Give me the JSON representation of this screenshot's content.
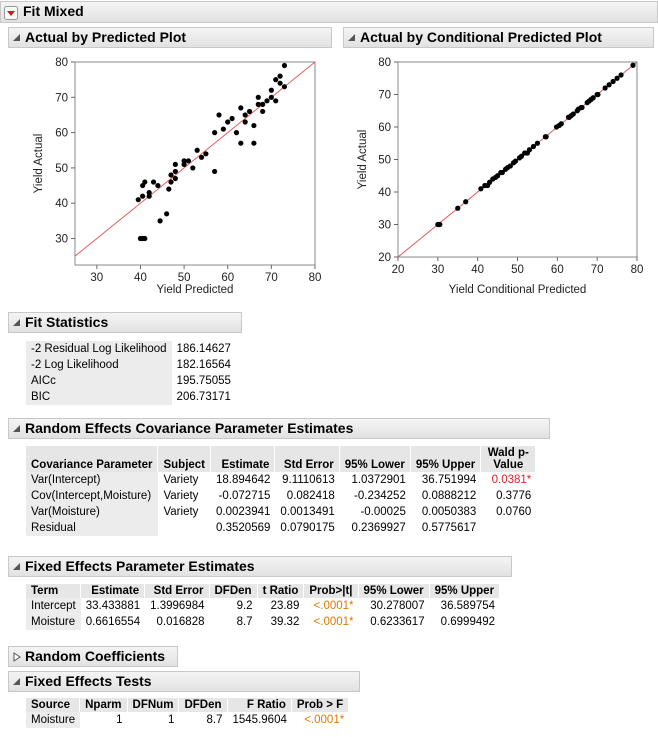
{
  "header": {
    "title": "Fit Mixed"
  },
  "chart_data": [
    {
      "type": "scatter",
      "title": "Actual by Predicted Plot",
      "x_label": "Yield Predicted",
      "y_label": "Yield Actual",
      "x": [
        40,
        40.5,
        41,
        39.5,
        40.5,
        40.5,
        41,
        42,
        42,
        43,
        44,
        44.5,
        46,
        46.5,
        47,
        47,
        48,
        48,
        48,
        50,
        50,
        51,
        52,
        53,
        54,
        55,
        57,
        57,
        58,
        59,
        60,
        61,
        62,
        63,
        63,
        64,
        64,
        65,
        66,
        66,
        67,
        67,
        68,
        68,
        69,
        70,
        70,
        71,
        71,
        72,
        72,
        73,
        73
      ],
      "values": [
        30,
        30,
        30,
        41,
        42,
        45,
        46,
        43,
        42,
        46,
        45,
        35,
        37,
        44,
        46,
        48,
        49,
        51,
        47,
        52,
        51,
        52,
        50,
        55,
        53,
        54,
        49,
        60,
        65,
        61,
        63,
        64,
        60,
        67,
        57,
        65,
        63,
        66,
        57,
        62,
        68,
        70,
        68,
        66,
        69,
        70,
        72,
        75,
        69,
        76,
        74,
        73,
        79
      ],
      "color": "#000000",
      "line_color": "#e06060",
      "xlim": [
        25,
        80
      ],
      "xticks": [
        30,
        40,
        50,
        60,
        70,
        80
      ],
      "ylim": [
        22.5,
        80
      ],
      "yticks": [
        30,
        40,
        50,
        60,
        70,
        80
      ]
    },
    {
      "type": "scatter",
      "title": "Actual by Conditional Predicted Plot",
      "x_label": "Yield Conditional Predicted",
      "y_label": "Yield Actual",
      "x": [
        30,
        30.3,
        30.5,
        35,
        37,
        40.8,
        41.8,
        42.5,
        43,
        43.8,
        44.5,
        45,
        45.8,
        46.2,
        47,
        47.5,
        48.2,
        49,
        49.5,
        50.5,
        51,
        51.8,
        52.5,
        53,
        54,
        55,
        57,
        57.2,
        59.8,
        60.5,
        61,
        62.8,
        63,
        63.5,
        64,
        65,
        65.3,
        66,
        66.2,
        67.5,
        68,
        68.5,
        69,
        70,
        70.2,
        72,
        73,
        74,
        75,
        76,
        79
      ],
      "values": [
        30,
        30,
        30,
        35,
        37,
        41,
        42,
        42,
        43,
        44,
        44.5,
        45,
        46,
        46,
        47,
        47.5,
        48,
        49,
        49.5,
        50.5,
        51,
        52,
        52,
        53,
        54,
        55,
        57,
        57,
        60,
        60.5,
        61,
        63,
        63,
        63.5,
        64,
        65,
        65.5,
        66,
        66,
        67.5,
        68,
        68.5,
        69,
        70,
        70,
        72,
        73,
        74,
        75,
        76,
        79
      ],
      "color": "#000000",
      "line_color": "#e06060",
      "xlim": [
        20,
        80
      ],
      "xticks": [
        20,
        30,
        40,
        50,
        60,
        70,
        80
      ],
      "ylim": [
        20,
        80
      ],
      "yticks": [
        20,
        30,
        40,
        50,
        60,
        70,
        80
      ]
    }
  ],
  "fit_statistics": {
    "title": "Fit Statistics",
    "rows": [
      [
        "-2 Residual Log Likelihood",
        186.14627
      ],
      [
        "-2 Log Likelihood",
        182.16564
      ],
      [
        "AICc",
        195.75055
      ],
      [
        "BIC",
        206.73171
      ]
    ]
  },
  "covariance_estimates": {
    "title": "Random Effects Covariance Parameter Estimates",
    "columns": [
      "Covariance Parameter",
      "Subject",
      "Estimate",
      "Std Error",
      "95% Lower",
      "95% Upper",
      "Wald p-Value"
    ],
    "rows": [
      [
        "Var(Intercept)",
        "Variety",
        18.894642,
        9.1110613,
        1.0372901,
        36.751994,
        "0.0381*"
      ],
      [
        "Cov(Intercept,Moisture)",
        "Variety",
        -0.072715,
        0.082418,
        -0.234252,
        0.0888212,
        "0.3776"
      ],
      [
        "Var(Moisture)",
        "Variety",
        0.0023941,
        0.0013491,
        -0.00025,
        0.0050383,
        "0.0760"
      ],
      [
        "Residual",
        null,
        0.3520569,
        0.0790175,
        0.2369927,
        0.5775617,
        null
      ]
    ]
  },
  "fixed_effects": {
    "title": "Fixed Effects Parameter Estimates",
    "columns": [
      "Term",
      "Estimate",
      "Std Error",
      "DFDen",
      "t Ratio",
      "Prob>|t|",
      "95% Lower",
      "95% Upper"
    ],
    "rows": [
      [
        "Intercept",
        33.433881,
        1.3996984,
        9.2,
        23.89,
        "<.0001*",
        30.278007,
        36.589754
      ],
      [
        "Moisture",
        0.6616554,
        0.016828,
        8.7,
        39.32,
        "<.0001*",
        0.6233617,
        0.6999492
      ]
    ]
  },
  "random_coefficients": {
    "title": "Random Coefficients"
  },
  "fixed_effects_tests": {
    "title": "Fixed Effects Tests",
    "columns": [
      "Source",
      "Nparm",
      "DFNum",
      "DFDen",
      "F Ratio",
      "Prob > F"
    ],
    "rows": [
      [
        "Moisture",
        1,
        1,
        8.7,
        1545.9604,
        "<.0001*"
      ]
    ]
  }
}
